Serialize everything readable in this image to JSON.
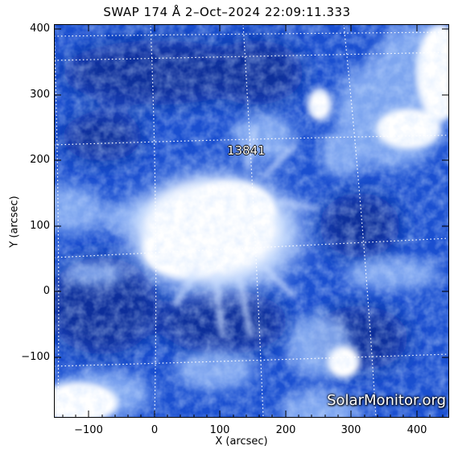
{
  "title": "SWAP  174 Å  2–Oct–2024 22:09:11.333",
  "axes": {
    "xlabel": "X (arcsec)",
    "ylabel": "Y (arcsec)",
    "xticks": [
      "−100",
      "0",
      "100",
      "200",
      "300",
      "400"
    ],
    "yticks": [
      "400",
      "300",
      "200",
      "100",
      "0",
      "−100"
    ]
  },
  "annotations": {
    "active_region": "13841",
    "watermark": "SolarMonitor.org"
  },
  "colors": {
    "sun_base": "#1a4fd0",
    "sun_dark": "#0a2f9a",
    "sun_bright": "#ffffff",
    "grid": "#ffffff"
  }
}
